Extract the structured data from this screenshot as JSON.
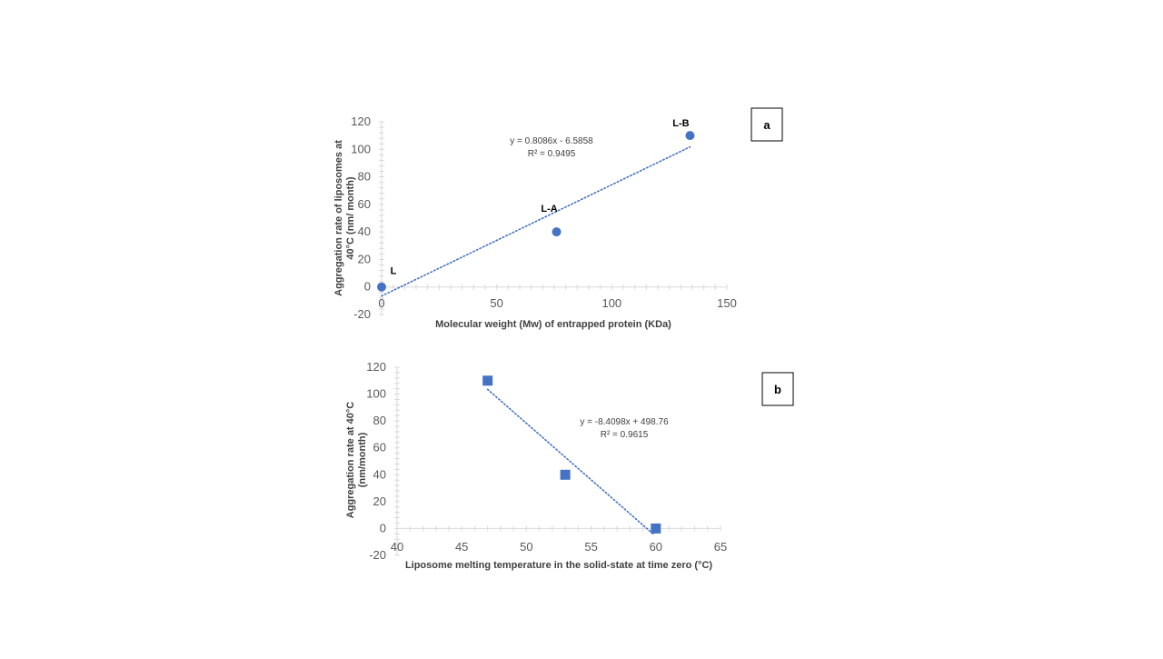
{
  "chart_data": [
    {
      "type": "scatter",
      "panel_label": "a",
      "xlabel": "Molecular weight (Mw) of entrapped protein (KDa)",
      "ylabel": "Aggregation rate of liposomes at 40°C (nm/ month)",
      "ylabel_lines": [
        "Aggregation rate of liposomes at",
        "40°C (nm/ month)"
      ],
      "xlim": [
        0,
        150
      ],
      "ylim": [
        -20,
        120
      ],
      "x_ticks": [
        0,
        50,
        100,
        150
      ],
      "y_ticks": [
        -20,
        0,
        20,
        40,
        60,
        80,
        100,
        120
      ],
      "marker": "circle",
      "color": "#4472c4",
      "points": [
        {
          "x": 0,
          "y": 0,
          "label": "L"
        },
        {
          "x": 76,
          "y": 40,
          "label": "L-A"
        },
        {
          "x": 134,
          "y": 110,
          "label": "L-B"
        }
      ],
      "trendline": {
        "slope": 0.8086,
        "intercept": -6.5858,
        "x_range": [
          0,
          134
        ],
        "equation": "y = 0.8086x - 6.5858",
        "r2": "R² = 0.9495"
      }
    },
    {
      "type": "scatter",
      "panel_label": "b",
      "xlabel": "Liposome melting temperature in the solid-state at time zero (°C)",
      "ylabel": "Aggregation rate at 40°C (nm/month)",
      "ylabel_lines": [
        "Aggregation rate at 40°C",
        "(nm/month)"
      ],
      "xlim": [
        40,
        65
      ],
      "ylim": [
        -20,
        120
      ],
      "x_ticks": [
        40,
        45,
        50,
        55,
        60,
        65
      ],
      "y_ticks": [
        -20,
        0,
        20,
        40,
        60,
        80,
        100,
        120
      ],
      "marker": "square",
      "color": "#4472c4",
      "points": [
        {
          "x": 47,
          "y": 110
        },
        {
          "x": 53,
          "y": 40
        },
        {
          "x": 60,
          "y": 0
        }
      ],
      "trendline": {
        "slope": -8.4098,
        "intercept": 498.76,
        "x_range": [
          47,
          59.8
        ],
        "equation": "y = -8.4098x + 498.76",
        "r2": "R² = 0.9615"
      }
    }
  ]
}
